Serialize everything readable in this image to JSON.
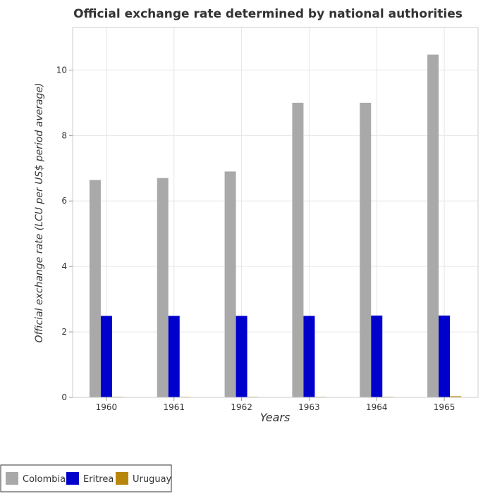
{
  "chart_data": {
    "type": "bar",
    "title": "Official exchange rate determined by national authorities",
    "xlabel": "Years",
    "ylabel": "Official exchange rate (LCU per US$ period average)",
    "categories": [
      "1960",
      "1961",
      "1962",
      "1963",
      "1964",
      "1965"
    ],
    "ylim": [
      0,
      11.3
    ],
    "yticks": [
      0,
      2,
      4,
      6,
      8,
      10
    ],
    "grid": true,
    "legend_position": "bottom-left",
    "series": [
      {
        "name": "Colombia",
        "color": "#a9a9a9",
        "values": [
          6.64,
          6.7,
          6.9,
          9.0,
          9.0,
          10.47
        ]
      },
      {
        "name": "Eritrea",
        "color": "#0000cc",
        "values": [
          2.49,
          2.49,
          2.49,
          2.49,
          2.5,
          2.5
        ]
      },
      {
        "name": "Uruguay",
        "color": "#b8860b",
        "values": [
          0.011,
          0.011,
          0.011,
          0.014,
          0.016,
          0.034
        ]
      }
    ]
  }
}
